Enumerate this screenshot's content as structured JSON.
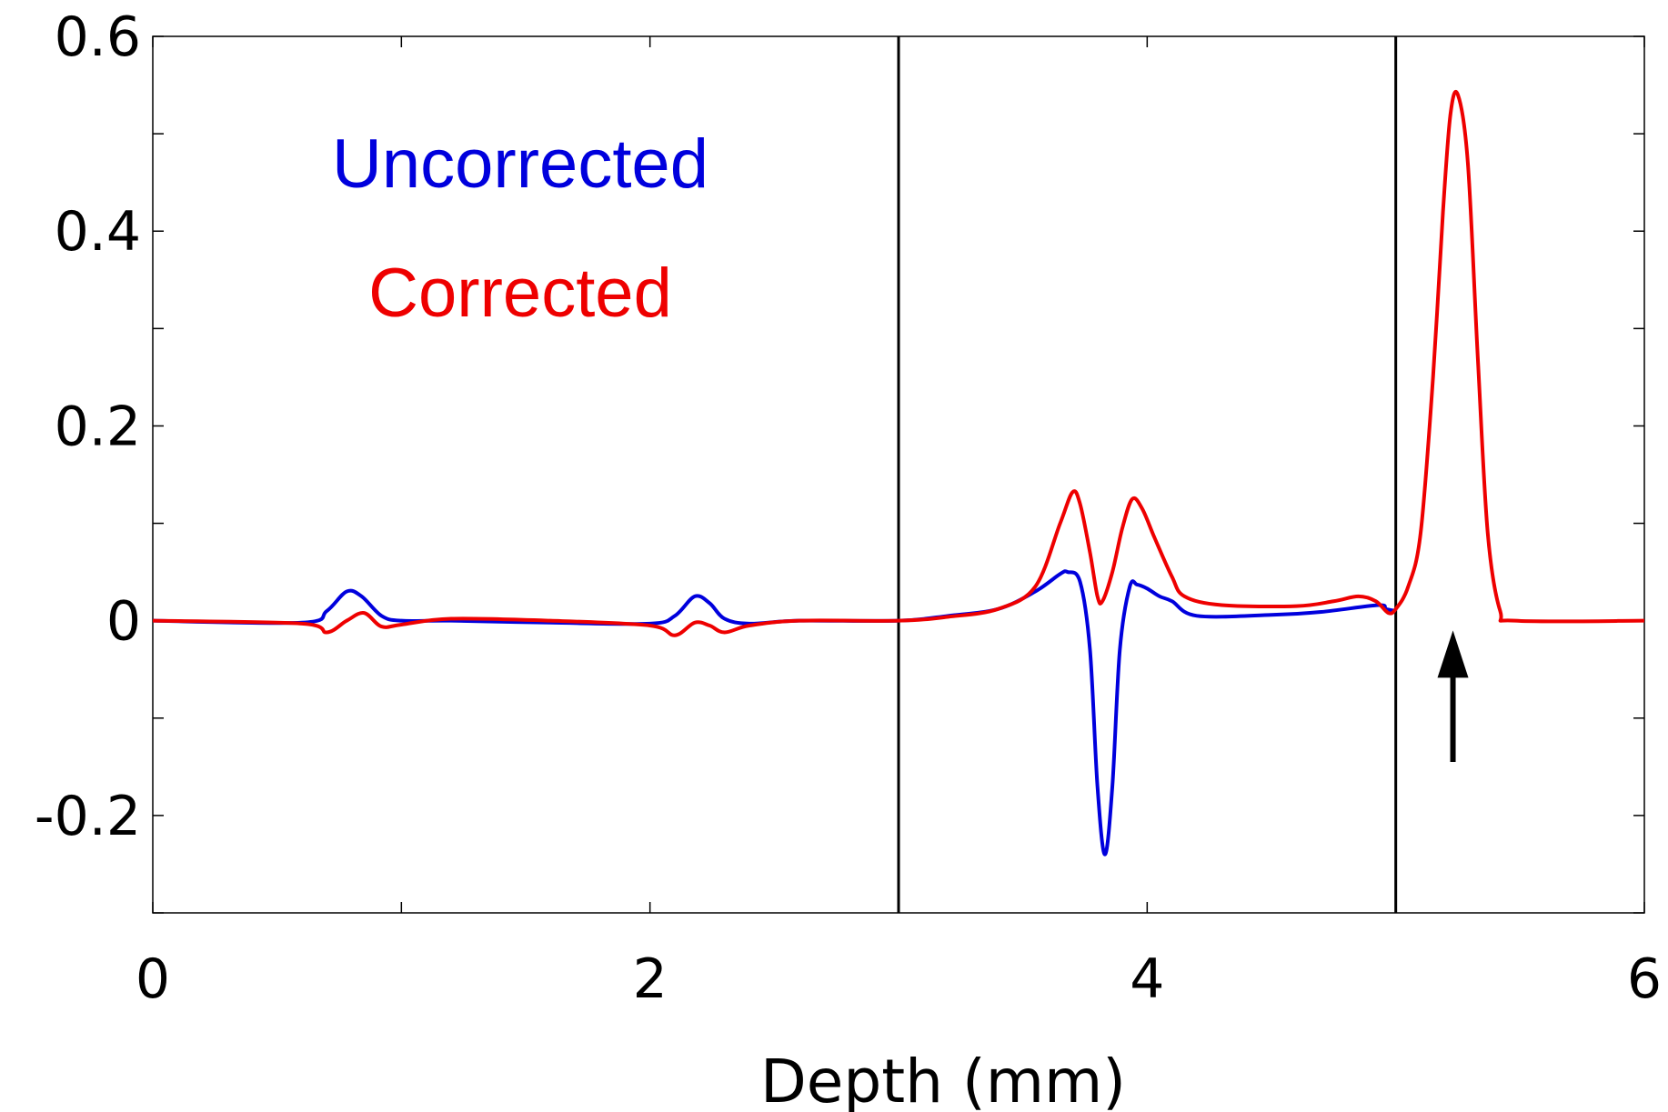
{
  "chart_data": {
    "type": "line",
    "title": "",
    "xlabel": "Depth (mm)",
    "ylabel": "",
    "xlim": [
      0,
      6
    ],
    "ylim": [
      -0.3,
      0.6
    ],
    "xticks": [
      0,
      2,
      4,
      6
    ],
    "xtick_labels": [
      "0",
      "2",
      "4",
      "6"
    ],
    "yticks": [
      -0.2,
      0,
      0.2,
      0.4,
      0.6
    ],
    "ytick_labels": [
      "-0.2",
      "0",
      "0.2",
      "0.4",
      "0.6"
    ],
    "grid": false,
    "legend": {
      "placement": "top-left",
      "entries": [
        {
          "label": "Uncorrected",
          "color": "#0000dd"
        },
        {
          "label": "Corrected",
          "color": "#ee0000"
        }
      ]
    },
    "vertical_lines": [
      3.0,
      5.0
    ],
    "annotations": [
      {
        "type": "arrow",
        "x": 5.23,
        "y_from": -0.145,
        "y_to": -0.01,
        "direction": "up",
        "color": "#000000"
      }
    ],
    "series": [
      {
        "name": "Uncorrected",
        "color": "#0000dd",
        "x": [
          0,
          0.6,
          0.7,
          0.78,
          0.84,
          0.92,
          1.0,
          1.2,
          1.6,
          2.0,
          2.1,
          2.18,
          2.24,
          2.3,
          2.4,
          2.6,
          3.0,
          3.2,
          3.4,
          3.55,
          3.65,
          3.68,
          3.73,
          3.77,
          3.8,
          3.83,
          3.86,
          3.89,
          3.93,
          3.96,
          4.0,
          4.05,
          4.1,
          4.2,
          4.5,
          4.7,
          4.93,
          4.96,
          5.0
        ],
        "y": [
          0,
          -0.002,
          0.01,
          0.03,
          0.025,
          0.005,
          0,
          0,
          -0.002,
          -0.003,
          0.005,
          0.025,
          0.018,
          0.002,
          -0.003,
          0,
          0,
          0.005,
          0.012,
          0.03,
          0.048,
          0.05,
          0.04,
          -0.03,
          -0.17,
          -0.24,
          -0.17,
          -0.03,
          0.035,
          0.037,
          0.033,
          0.025,
          0.02,
          0.005,
          0.006,
          0.009,
          0.016,
          0.012,
          0.01
        ]
      },
      {
        "name": "Corrected",
        "color": "#ee0000",
        "x": [
          0,
          0.6,
          0.7,
          0.78,
          0.85,
          0.92,
          1.0,
          1.2,
          1.6,
          2.0,
          2.1,
          2.18,
          2.24,
          2.3,
          2.4,
          2.6,
          3.0,
          3.2,
          3.4,
          3.55,
          3.65,
          3.7,
          3.73,
          3.77,
          3.8,
          3.82,
          3.86,
          3.9,
          3.94,
          3.98,
          4.03,
          4.1,
          4.15,
          4.3,
          4.6,
          4.75,
          4.85,
          4.92,
          4.97,
          5.0,
          5.05,
          5.1,
          5.15,
          5.19,
          5.22,
          5.25,
          5.29,
          5.33,
          5.37,
          5.42,
          5.48,
          6.0
        ],
        "y": [
          0,
          -0.003,
          -0.012,
          0.0,
          0.008,
          -0.006,
          -0.004,
          0.002,
          0.0,
          -0.005,
          -0.015,
          -0.002,
          -0.005,
          -0.012,
          -0.005,
          0,
          0,
          0.004,
          0.012,
          0.035,
          0.1,
          0.132,
          0.12,
          0.07,
          0.025,
          0.02,
          0.05,
          0.095,
          0.125,
          0.115,
          0.085,
          0.045,
          0.025,
          0.016,
          0.015,
          0.02,
          0.025,
          0.02,
          0.008,
          0.012,
          0.035,
          0.09,
          0.25,
          0.42,
          0.52,
          0.54,
          0.47,
          0.27,
          0.09,
          0.01,
          0,
          0
        ]
      }
    ]
  }
}
